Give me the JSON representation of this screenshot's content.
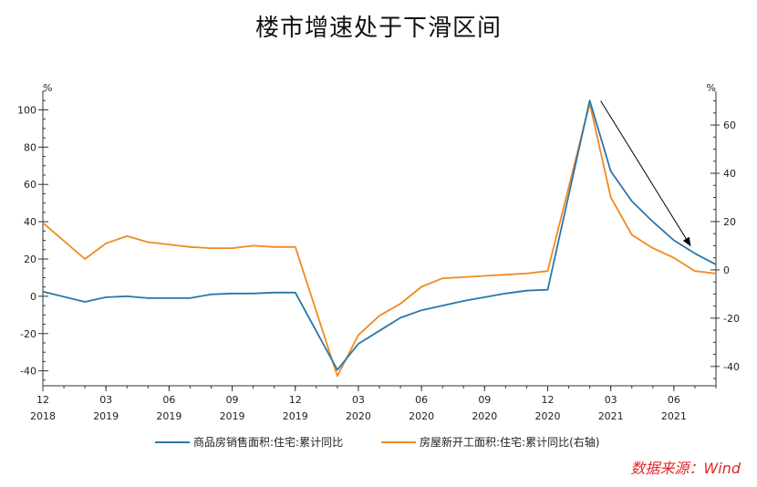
{
  "title": "楼市增速处于下滑区间",
  "source": "数据来源：Wind",
  "colors": {
    "series1": "#2a77a8",
    "series2": "#f08a1f",
    "arrow": "#000000"
  },
  "chart_data": {
    "type": "line",
    "x_ticks": [
      {
        "m": "12",
        "y": "2018"
      },
      {
        "m": "03",
        "y": "2019"
      },
      {
        "m": "06",
        "y": "2019"
      },
      {
        "m": "09",
        "y": "2019"
      },
      {
        "m": "12",
        "y": "2019"
      },
      {
        "m": "03",
        "y": "2020"
      },
      {
        "m": "06",
        "y": "2020"
      },
      {
        "m": "09",
        "y": "2020"
      },
      {
        "m": "12",
        "y": "2020"
      },
      {
        "m": "03",
        "y": "2021"
      },
      {
        "m": "06",
        "y": "2021"
      }
    ],
    "x": [
      "2018-12",
      "2019-02",
      "2019-03",
      "2019-04",
      "2019-05",
      "2019-06",
      "2019-07",
      "2019-08",
      "2019-09",
      "2019-10",
      "2019-11",
      "2019-12",
      "2020-02",
      "2020-03",
      "2020-04",
      "2020-05",
      "2020-06",
      "2020-07",
      "2020-08",
      "2020-09",
      "2020-10",
      "2020-11",
      "2020-12",
      "2021-02",
      "2021-03",
      "2021-04",
      "2021-05",
      "2021-06",
      "2021-07",
      "2021-08"
    ],
    "left_axis": {
      "unit": "%",
      "ylim": [
        -48,
        110
      ],
      "ticks": [
        -40,
        -20,
        0,
        20,
        40,
        60,
        80,
        100
      ]
    },
    "right_axis": {
      "unit": "%",
      "ylim": [
        -48,
        74
      ],
      "ticks": [
        -40,
        -20,
        0,
        20,
        40,
        60
      ]
    },
    "series": [
      {
        "name": "商品房销售面积:住宅:累计同比",
        "axis": "left",
        "values": [
          2.5,
          -3,
          -0.5,
          0,
          -1,
          -1,
          -1,
          1,
          1.5,
          1.5,
          2,
          2,
          -39.5,
          -25.5,
          -18.5,
          -11.5,
          -7.5,
          -5,
          -2.5,
          -0.5,
          1.5,
          3,
          3.5,
          105,
          67,
          51,
          40,
          30,
          23,
          17
        ]
      },
      {
        "name": "房屋新开工面积:住宅:累计同比(右轴)",
        "axis": "right",
        "values": [
          19.5,
          4.5,
          11,
          14,
          11.5,
          10.5,
          9.5,
          9,
          9,
          10,
          9.5,
          9.5,
          -44,
          -27,
          -19,
          -14,
          -7,
          -3.5,
          -3,
          -2.5,
          -2,
          -1.5,
          -0.5,
          69,
          30,
          14.5,
          9,
          5,
          -0.5,
          -1.5
        ]
      }
    ],
    "annotation": {
      "type": "arrow",
      "from": [
        "2021-02",
        70
      ],
      "to": [
        "2021-08",
        10
      ],
      "axis": "right"
    }
  }
}
